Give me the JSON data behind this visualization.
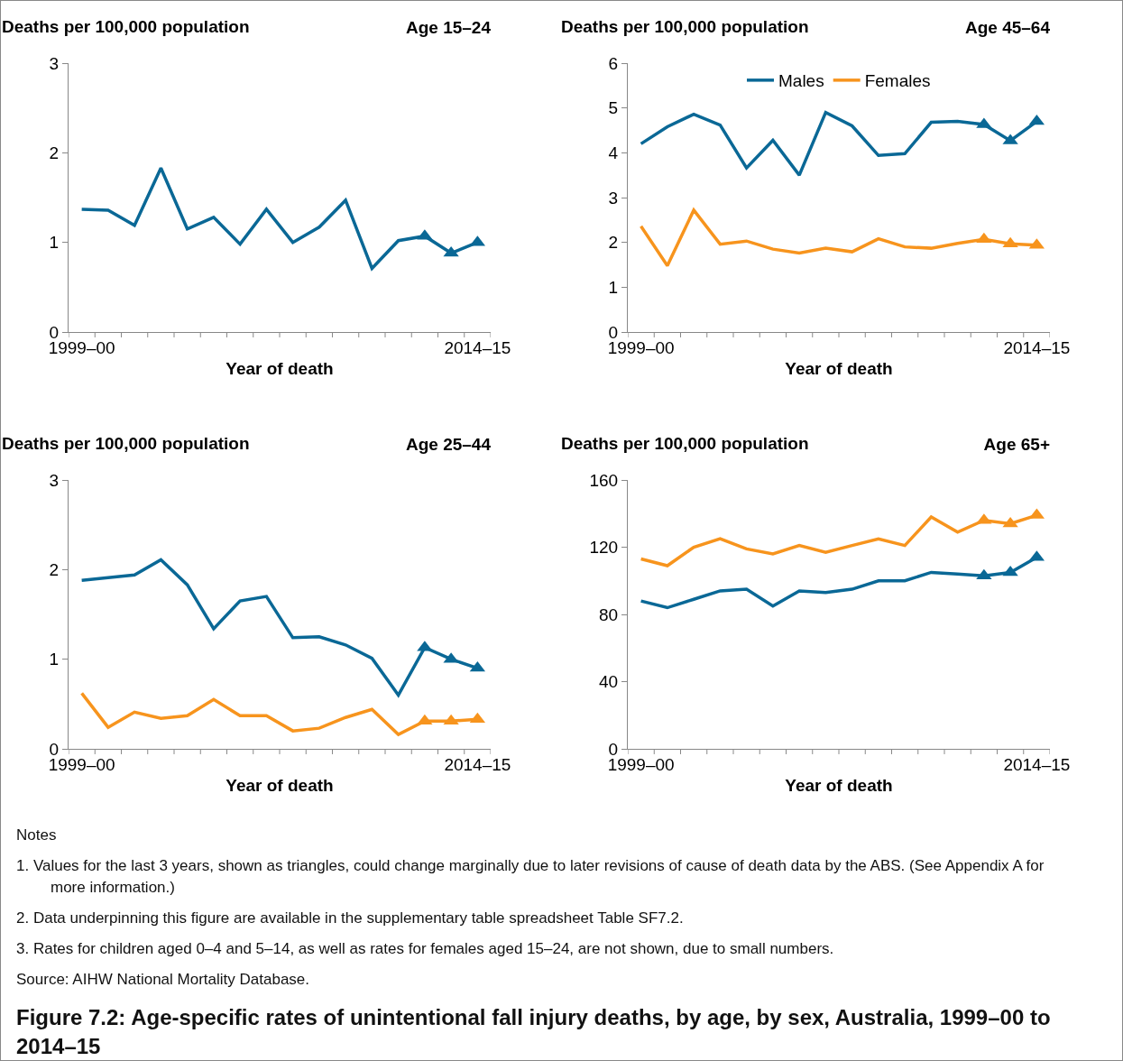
{
  "chart_data": [
    {
      "type": "line",
      "title": "Age 15–24",
      "ylabel": "Deaths per 100,000 population",
      "xlabel": "Year of death",
      "categories": [
        "1999–00",
        null,
        null,
        null,
        null,
        null,
        null,
        null,
        null,
        null,
        null,
        null,
        null,
        null,
        null,
        "2014–15"
      ],
      "ylim": [
        0,
        3
      ],
      "yticks": [
        0,
        1,
        2,
        3
      ],
      "series": [
        {
          "color": "#0a6896",
          "values": [
            1.37,
            1.36,
            1.19,
            1.83,
            1.15,
            1.28,
            0.98,
            1.37,
            1.0,
            1.17,
            1.47,
            0.71,
            1.02,
            1.07,
            0.88,
            1.0
          ]
        },
        {
          "type": "scatter",
          "marker": "triangle",
          "color": "#0a6896",
          "values": [
            null,
            null,
            null,
            null,
            null,
            null,
            null,
            null,
            null,
            null,
            null,
            null,
            null,
            1.07,
            0.88,
            1.0
          ]
        }
      ]
    },
    {
      "type": "line",
      "title": "Age 45–64",
      "ylabel": "Deaths per 100,000 population",
      "xlabel": "Year of death",
      "categories": [
        "1999–00",
        null,
        null,
        null,
        null,
        null,
        null,
        null,
        null,
        null,
        null,
        null,
        null,
        null,
        null,
        "2014–15"
      ],
      "ylim": [
        0,
        6
      ],
      "yticks": [
        0,
        1,
        2,
        3,
        4,
        5,
        6
      ],
      "legend": "top",
      "series": [
        {
          "name": "Males",
          "color": "#0a6896",
          "values": [
            4.2,
            4.58,
            4.86,
            4.62,
            3.66,
            4.28,
            3.5,
            4.9,
            4.6,
            3.94,
            3.98,
            4.68,
            4.7,
            4.63,
            4.27,
            4.7
          ]
        },
        {
          "name": "Females",
          "color": "#f7941d",
          "values": [
            2.36,
            1.48,
            2.72,
            1.96,
            2.03,
            1.85,
            1.76,
            1.87,
            1.79,
            2.08,
            1.9,
            1.87,
            1.98,
            2.07,
            1.97,
            1.94
          ]
        },
        {
          "type": "scatter",
          "marker": "triangle",
          "color": "#0a6896",
          "values": [
            null,
            null,
            null,
            null,
            null,
            null,
            null,
            null,
            null,
            null,
            null,
            null,
            null,
            4.63,
            4.27,
            4.7
          ]
        },
        {
          "type": "scatter",
          "marker": "triangle",
          "color": "#f7941d",
          "values": [
            null,
            null,
            null,
            null,
            null,
            null,
            null,
            null,
            null,
            null,
            null,
            null,
            null,
            2.07,
            1.97,
            1.94
          ]
        }
      ]
    },
    {
      "type": "line",
      "title": "Age 25–44",
      "ylabel": "Deaths per 100,000 population",
      "xlabel": "Year of death",
      "categories": [
        "1999–00",
        null,
        null,
        null,
        null,
        null,
        null,
        null,
        null,
        null,
        null,
        null,
        null,
        null,
        null,
        "2014–15"
      ],
      "ylim": [
        0,
        3
      ],
      "yticks": [
        0,
        1,
        2,
        3
      ],
      "series": [
        {
          "color": "#0a6896",
          "values": [
            1.88,
            1.91,
            1.94,
            2.11,
            1.83,
            1.34,
            1.65,
            1.7,
            1.24,
            1.25,
            1.16,
            1.01,
            0.6,
            1.13,
            1.0,
            0.9
          ]
        },
        {
          "color": "#f7941d",
          "values": [
            0.62,
            0.24,
            0.41,
            0.34,
            0.37,
            0.55,
            0.37,
            0.37,
            0.2,
            0.23,
            0.35,
            0.44,
            0.16,
            0.31,
            0.31,
            0.33
          ]
        },
        {
          "type": "scatter",
          "marker": "triangle",
          "color": "#0a6896",
          "values": [
            null,
            null,
            null,
            null,
            null,
            null,
            null,
            null,
            null,
            null,
            null,
            null,
            null,
            1.13,
            1.0,
            0.9
          ]
        },
        {
          "type": "scatter",
          "marker": "triangle",
          "color": "#f7941d",
          "values": [
            null,
            null,
            null,
            null,
            null,
            null,
            null,
            null,
            null,
            null,
            null,
            null,
            null,
            0.31,
            0.31,
            0.33
          ]
        }
      ]
    },
    {
      "type": "line",
      "title": "Age 65+",
      "ylabel": "Deaths per 100,000 population",
      "xlabel": "Year of death",
      "categories": [
        "1999–00",
        null,
        null,
        null,
        null,
        null,
        null,
        null,
        null,
        null,
        null,
        null,
        null,
        null,
        null,
        "2014–15"
      ],
      "ylim": [
        0,
        160
      ],
      "yticks": [
        0,
        40,
        80,
        120,
        160
      ],
      "series": [
        {
          "color": "#0a6896",
          "values": [
            88,
            84,
            89,
            94,
            95,
            85,
            94,
            93,
            95,
            100,
            100,
            105,
            104,
            103,
            105,
            114
          ]
        },
        {
          "color": "#f7941d",
          "values": [
            113,
            109,
            120,
            125,
            119,
            116,
            121,
            117,
            121,
            125,
            121,
            138,
            129,
            136,
            134,
            139
          ]
        },
        {
          "type": "scatter",
          "marker": "triangle",
          "color": "#0a6896",
          "values": [
            null,
            null,
            null,
            null,
            null,
            null,
            null,
            null,
            null,
            null,
            null,
            null,
            null,
            103,
            105,
            114
          ]
        },
        {
          "type": "scatter",
          "marker": "triangle",
          "color": "#f7941d",
          "values": [
            null,
            null,
            null,
            null,
            null,
            null,
            null,
            null,
            null,
            null,
            null,
            null,
            null,
            136,
            134,
            139
          ]
        }
      ]
    },
    {
      "type": "other",
      "title": "Figure 7.2: Age-specific rates of unintentional fall injury deaths, by age, by sex, Australia, 1999–00 to 2014–15",
      "annotations": [
        "Notes",
        "1. Values for the last 3 years, shown as triangles, could change marginally due to later revisions of cause of death data by the ABS. (See Appendix A for more information.)",
        "2. Data underpinning this figure are available in the supplementary table spreadsheet Table SF7.2.",
        "3. Rates for children aged 0–4 and 5–14, as well as rates for females aged 15–24, are not shown, due to small numbers.",
        "Source: AIHW National Mortality Database."
      ]
    }
  ]
}
